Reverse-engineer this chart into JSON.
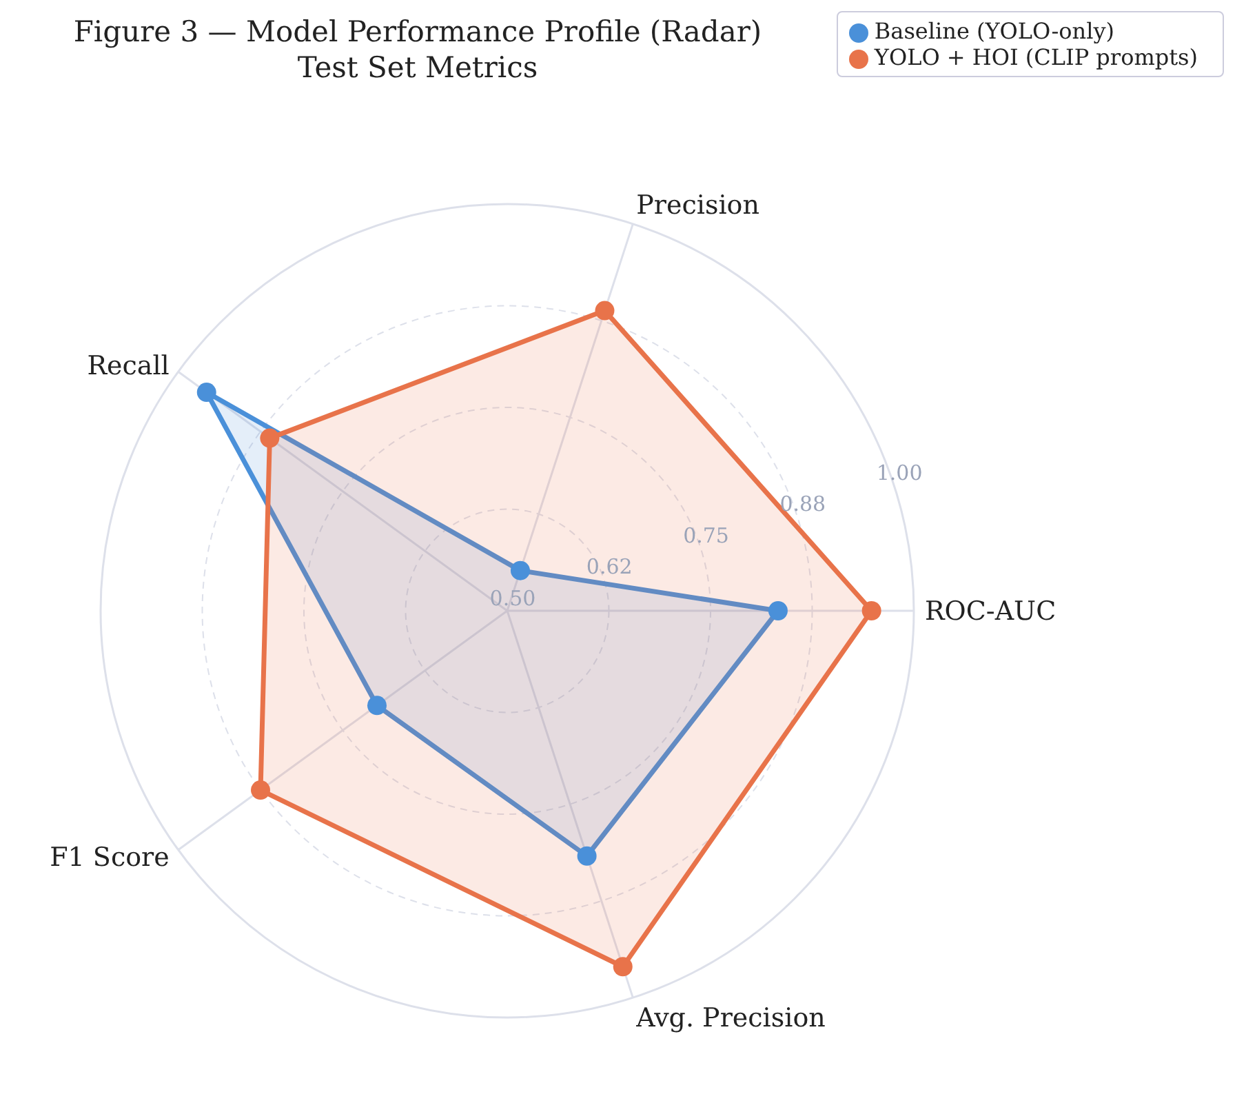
{
  "chart_data": {
    "type": "radar",
    "title": "Figure 3 — Model Performance Profile (Radar)",
    "subtitle": "Test Set Metrics",
    "categories": [
      "Precision",
      "ROC-AUC",
      "Avg. Precision",
      "F1 Score",
      "Recall"
    ],
    "series": [
      {
        "name": "Baseline (YOLO-only)",
        "color": "#4a90d9",
        "values": [
          0.552,
          0.833,
          0.817,
          0.698,
          0.957
        ]
      },
      {
        "name": "YOLO + HOI (CLIP prompts)",
        "color": "#e8734a",
        "values": [
          0.888,
          0.948,
          0.96,
          0.875,
          0.861
        ]
      }
    ],
    "ylim": [
      0.5,
      1.0
    ],
    "yticks": [
      {
        "value": 0.5,
        "label": "0.50"
      },
      {
        "value": 0.625,
        "label": "0.62"
      },
      0.75,
      {
        "value": 0.875,
        "label": "0.88"
      },
      {
        "value": 1.0,
        "label": "1.00"
      }
    ],
    "grid": true,
    "legend": "top right",
    "marker": "circle",
    "line_style": "solid"
  }
}
